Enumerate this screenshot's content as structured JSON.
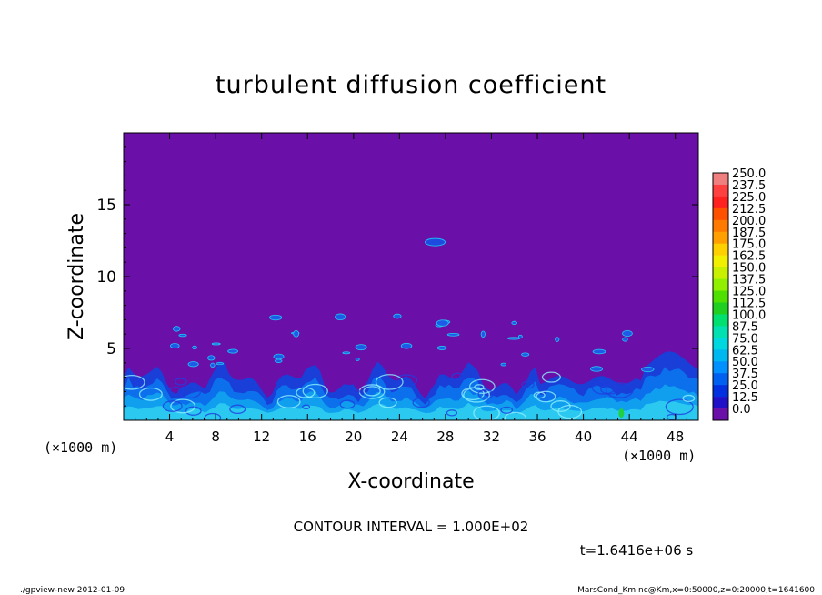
{
  "chart_data": {
    "type": "heatmap",
    "title": "turbulent diffusion coefficient",
    "xlabel": "X-coordinate",
    "ylabel": "Z-coordinate",
    "x_unit": "(×1000 m)",
    "y_unit": "(×1000 m)",
    "xlim": [
      0,
      50
    ],
    "ylim": [
      0,
      20
    ],
    "x_ticks": [
      4,
      8,
      12,
      16,
      20,
      24,
      28,
      32,
      36,
      40,
      44,
      48
    ],
    "y_ticks": [
      5,
      10,
      15
    ],
    "colorbar": {
      "levels": [
        "250.0",
        "237.5",
        "225.0",
        "212.5",
        "200.0",
        "187.5",
        "175.0",
        "162.5",
        "150.0",
        "137.5",
        "125.0",
        "112.5",
        "100.0",
        "87.5",
        "75.0",
        "62.5",
        "50.0",
        "37.5",
        "25.0",
        "12.5",
        "0.0"
      ],
      "colors": [
        "#f08080",
        "#ff4040",
        "#ff2020",
        "#ff5000",
        "#ff7a00",
        "#ffa000",
        "#ffd000",
        "#f0f000",
        "#c8f000",
        "#90f000",
        "#50e000",
        "#20d020",
        "#00e070",
        "#00e0b0",
        "#00d8e0",
        "#00b8f0",
        "#0090ff",
        "#0060f0",
        "#0030e0",
        "#2010c8",
        "#6a0fa8"
      ]
    },
    "contour_interval": "CONTOUR INTERVAL = 1.000E+02",
    "time_label": "t=1.6416e+06 s",
    "background_color": "#6a0fa8"
  },
  "footer": {
    "left": "./gpview-new   2012-01-09",
    "right": "MarsCond_Km.nc@Km,x=0:50000,z=0:20000,t=1641600"
  }
}
